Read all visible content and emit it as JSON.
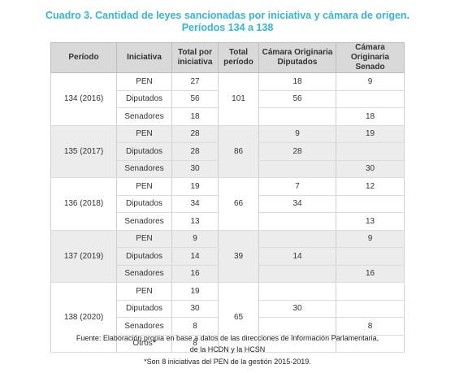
{
  "title": {
    "line1": "Cuadro 3. Cantidad de leyes sancionadas por iniciativa y cámara de origen.",
    "line2": "Períodos 134 a 138"
  },
  "table": {
    "header": [
      "Período",
      "Iniciativa",
      "Total por iniciativa",
      "Total período",
      "Cámara Originaria Diputados",
      "Cámara Originaria Senado"
    ],
    "groups": [
      {
        "period": "134 (2016)",
        "total": 101,
        "rows": [
          {
            "initiative": "PEN",
            "total": 27,
            "diputados": 18,
            "senado": 9
          },
          {
            "initiative": "Diputados",
            "total": 56,
            "diputados": 56,
            "senado": null
          },
          {
            "initiative": "Senadores",
            "total": 18,
            "diputados": null,
            "senado": 18
          }
        ]
      },
      {
        "period": "135 (2017)",
        "total": 86,
        "rows": [
          {
            "initiative": "PEN",
            "total": 28,
            "diputados": 9,
            "senado": 19
          },
          {
            "initiative": "Diputados",
            "total": 28,
            "diputados": 28,
            "senado": null
          },
          {
            "initiative": "Senadores",
            "total": 30,
            "diputados": null,
            "senado": 30
          }
        ]
      },
      {
        "period": "136 (2018)",
        "total": 66,
        "rows": [
          {
            "initiative": "PEN",
            "total": 19,
            "diputados": 7,
            "senado": 12
          },
          {
            "initiative": "Diputados",
            "total": 34,
            "diputados": 34,
            "senado": null
          },
          {
            "initiative": "Senadores",
            "total": 13,
            "diputados": null,
            "senado": 13
          }
        ]
      },
      {
        "period": "137 (2019)",
        "total": 39,
        "rows": [
          {
            "initiative": "PEN",
            "total": 9,
            "diputados": null,
            "senado": 9
          },
          {
            "initiative": "Diputados",
            "total": 14,
            "diputados": 14,
            "senado": null
          },
          {
            "initiative": "Senadores",
            "total": 16,
            "diputados": null,
            "senado": 16
          }
        ]
      },
      {
        "period": "138 (2020)",
        "total": 65,
        "rows": [
          {
            "initiative": "PEN",
            "total": 19,
            "diputados": null,
            "senado": null
          },
          {
            "initiative": "Diputados",
            "total": 30,
            "diputados": 30,
            "senado": null
          },
          {
            "initiative": "Senadores",
            "total": 8,
            "diputados": null,
            "senado": 8
          },
          {
            "initiative": "Otros*",
            "total": 8,
            "diputados": null,
            "senado": null
          }
        ]
      }
    ]
  },
  "footnote": [
    "Fuente: Elaboración propia en base a datos de las direcciones de Información Parlamentaria,",
    "de la HCDN y la HCSN",
    "*Son 8 iniciativas del PEN de la gestión 2015-2019."
  ]
}
